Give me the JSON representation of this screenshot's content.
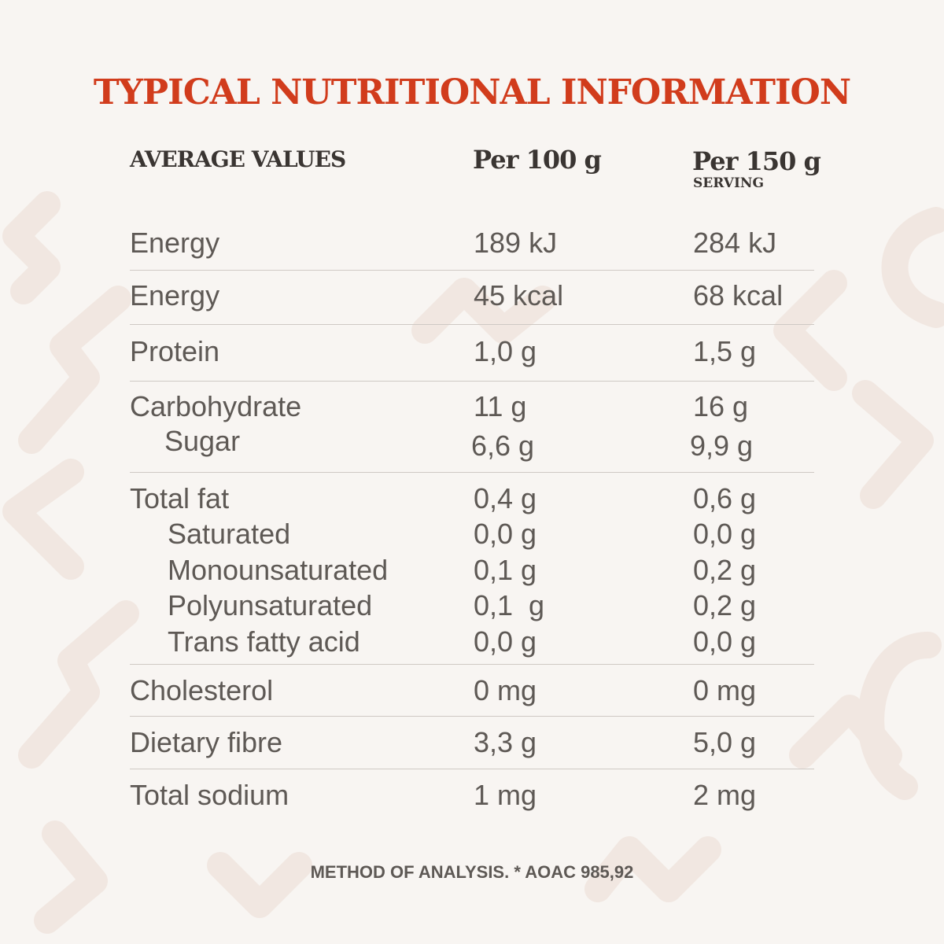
{
  "title": "TYPICAL NUTRITIONAL INFORMATION",
  "header": {
    "average_values": "AVERAGE VALUES",
    "col1": "Per 100 g",
    "col2": "Per 150 g",
    "col2_sub": "SERVING"
  },
  "rows": [
    {
      "label": "Energy",
      "v1": "189 kJ",
      "v2": "284 kJ"
    },
    {
      "label": "Energy",
      "v1": "45 kcal",
      "v2": "68 kcal"
    },
    {
      "label": "Protein",
      "v1": "1,0 g",
      "v2": "1,5 g"
    },
    {
      "label": "Carbohydrate",
      "v1": "11 g",
      "v2": "16 g",
      "subs": [
        {
          "label": "Sugar",
          "v1": "6,6 g",
          "v2": "9,9 g"
        }
      ]
    },
    {
      "label": "Total fat",
      "v1": "0,4 g",
      "v2": "0,6 g",
      "subs": [
        {
          "label": "Saturated",
          "v1": "0,0 g",
          "v2": "0,0 g"
        },
        {
          "label": "Monounsaturated",
          "v1": "0,1 g",
          "v2": "0,2 g"
        },
        {
          "label": "Polyunsaturated",
          "v1": "0,1  g",
          "v2": "0,2 g"
        },
        {
          "label": "Trans fatty acid",
          "v1": "0,0 g",
          "v2": "0,0 g"
        }
      ]
    },
    {
      "label": "Cholesterol",
      "v1": "0 mg",
      "v2": "0 mg"
    },
    {
      "label": "Dietary fibre",
      "v1": "3,3 g",
      "v2": "5,0 g"
    },
    {
      "label": "Total sodium",
      "v1": "1 mg",
      "v2": "2 mg"
    }
  ],
  "footer": "METHOD OF ANALYSIS. * AOAC 985,92",
  "colors": {
    "background": "#f8f5f2",
    "title": "#d13c1c",
    "text": "#5e5955",
    "rule": "#cfc9c4"
  }
}
